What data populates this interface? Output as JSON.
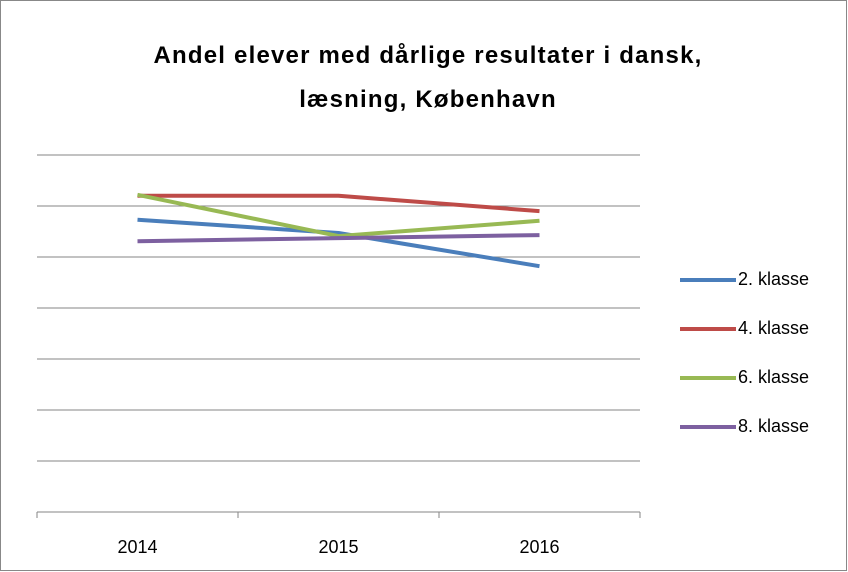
{
  "chart_data": {
    "type": "line",
    "title": "Andel elever med dårlige resultater i dansk, læsning, København",
    "categories": [
      "2014",
      "2015",
      "2016"
    ],
    "series": [
      {
        "name": "2. klasse",
        "color": "#4a7ebb",
        "values": [
          5.73,
          5.47,
          4.82
        ]
      },
      {
        "name": "4. klasse",
        "color": "#be4b48",
        "values": [
          6.2,
          6.2,
          5.9
        ]
      },
      {
        "name": "6. klasse",
        "color": "#98b954",
        "values": [
          6.22,
          5.41,
          5.71
        ]
      },
      {
        "name": "8. klasse",
        "color": "#7d60a0",
        "values": [
          5.31,
          5.37,
          5.43
        ]
      }
    ],
    "ylim": [
      0,
      7
    ],
    "yticks": [
      0,
      1,
      2,
      3,
      4,
      5,
      6,
      7
    ],
    "grid": true,
    "legend": "right"
  }
}
